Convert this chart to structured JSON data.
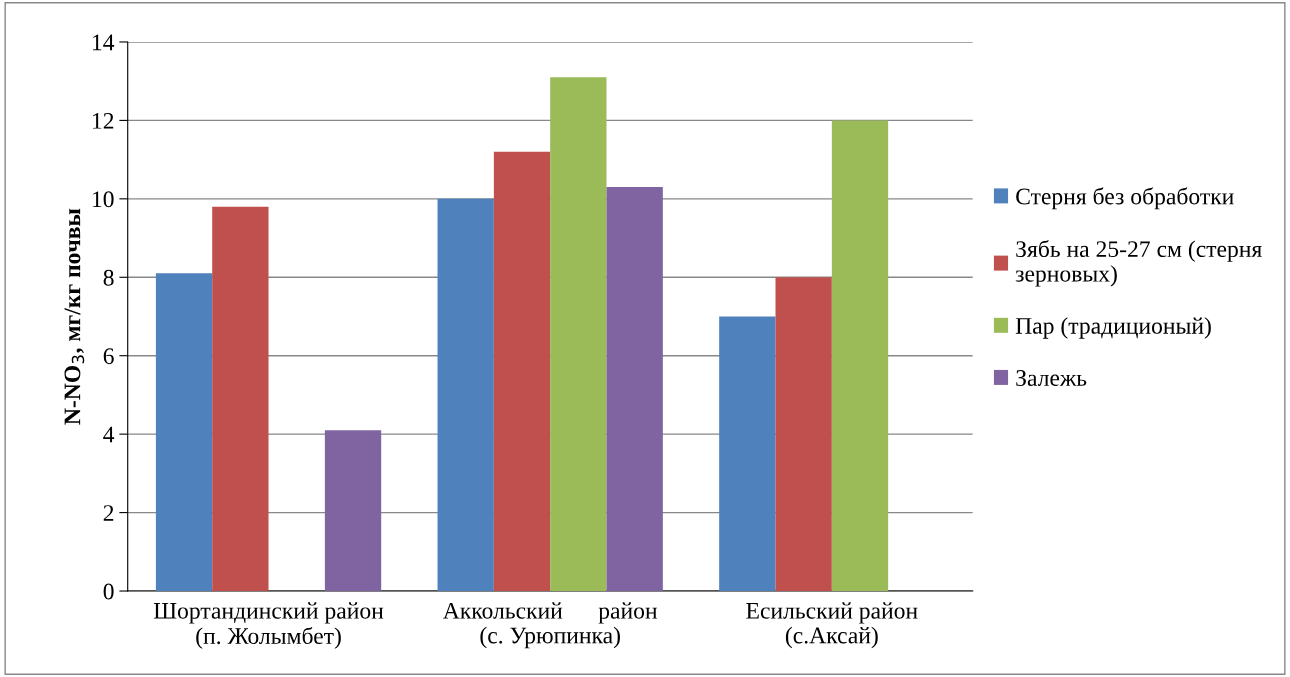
{
  "chart_data": {
    "type": "bar",
    "ylabel": "N-NO$_{3}$, мг/кг почвы",
    "categories": [
      "Шортандинский район\n(п. Жолымбет)",
      "Аккольский      район\n(с. Урюпинка)",
      "Есильский район\n(с.Аксай)"
    ],
    "series": [
      {
        "name": "Стерня без обработки",
        "color": "#4f81bd",
        "values": [
          8.1,
          10.0,
          7.0
        ]
      },
      {
        "name": "Зябь на 25-27 см (стерня\nзерновых)",
        "color": "#c0504d",
        "values": [
          9.8,
          11.2,
          8.0
        ]
      },
      {
        "name": "Пар (традиционый)",
        "color": "#9bbb59",
        "values": [
          null,
          13.1,
          12.0
        ]
      },
      {
        "name": "Залежь",
        "color": "#8064a2",
        "values": [
          4.1,
          10.3,
          null
        ]
      }
    ],
    "ylim": [
      0,
      14
    ],
    "yticks": [
      0,
      2,
      4,
      6,
      8,
      10,
      12,
      14
    ],
    "grid": "y",
    "legend": "right"
  }
}
